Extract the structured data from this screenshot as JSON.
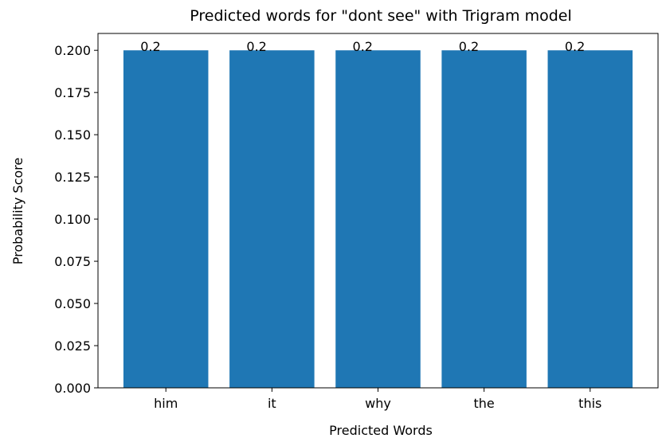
{
  "chart_data": {
    "type": "bar",
    "title": "Predicted words for \"dont see\" with Trigram model",
    "xlabel": "Predicted Words",
    "ylabel": "Probability Score",
    "categories": [
      "him",
      "it",
      "why",
      "the",
      "this"
    ],
    "values": [
      0.2,
      0.2,
      0.2,
      0.2,
      0.2
    ],
    "color": "#1f77b4",
    "ylim": [
      0,
      0.21
    ],
    "yticks": [
      {
        "value": 0,
        "label": "0.000"
      },
      0.025,
      {
        "value": 0.05,
        "label": "0.050"
      },
      0.075,
      {
        "value": 0.1,
        "label": "0.100"
      },
      0.125,
      {
        "value": 0.15,
        "label": "0.150"
      },
      0.175,
      {
        "value": 0.2,
        "label": "0.200"
      }
    ],
    "grid": false
  }
}
